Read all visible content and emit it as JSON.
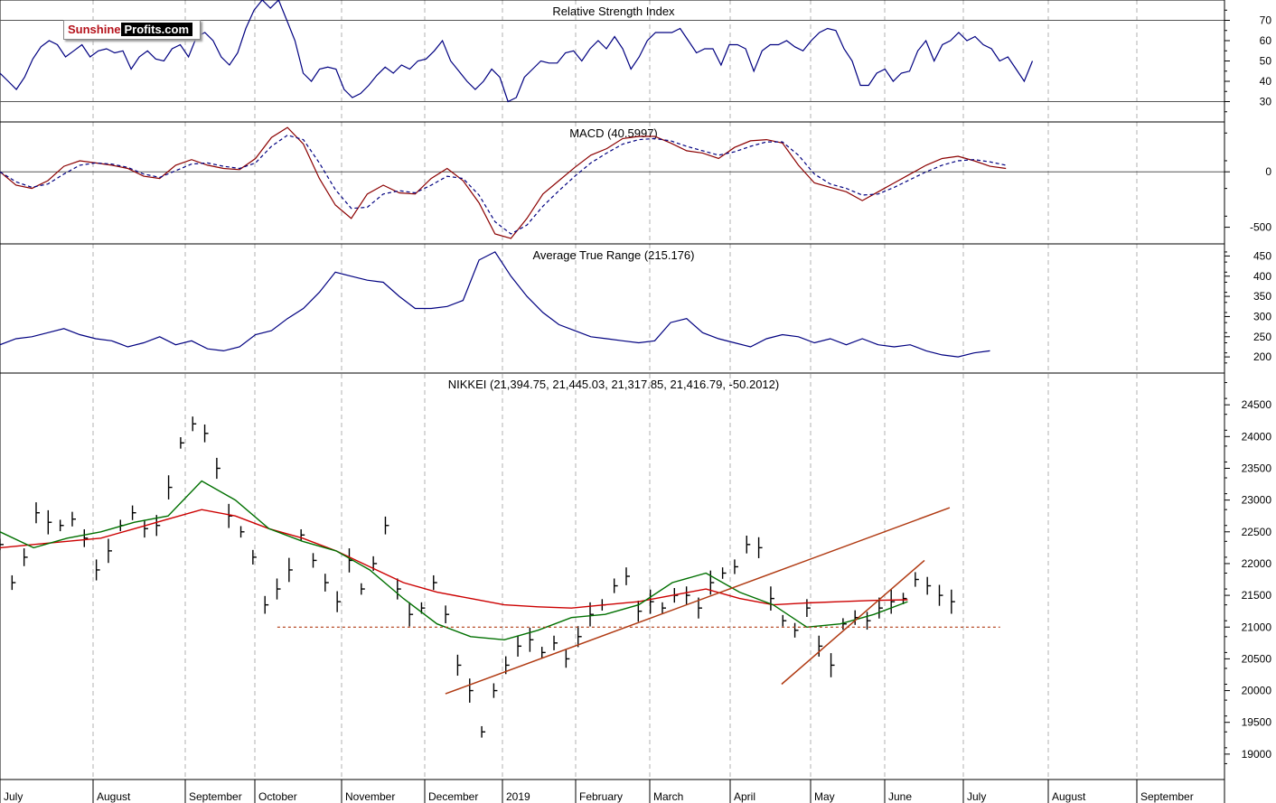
{
  "logo": {
    "part1": "Sunshine",
    "part2": "Profits.com"
  },
  "x_axis": {
    "labels": [
      "July",
      "August",
      "September",
      "October",
      "November",
      "December",
      "2019",
      "February",
      "March",
      "April",
      "May",
      "June",
      "July",
      "August",
      "September"
    ]
  },
  "colors": {
    "indicator_line": "#000080",
    "macd_signal": "#8b0000",
    "ma_long": "#cc0000",
    "ma_short": "#007000",
    "trendline": "#b03a12",
    "support": "#b03a12",
    "price_bars": "#000000",
    "grid": "#b0b0b0"
  },
  "chart_data": [
    {
      "type": "line",
      "title": "Relative Strength Index",
      "y_ticks": [
        "70",
        "60",
        "50",
        "40",
        "30"
      ],
      "ylim": [
        20,
        80
      ],
      "reference_lines": [
        70,
        30
      ],
      "series": [
        {
          "values": [
            44,
            40,
            36,
            42,
            51,
            57,
            60,
            58,
            52,
            55,
            58,
            52,
            55,
            56,
            54,
            55,
            46,
            52,
            55,
            51,
            50,
            56,
            58,
            52,
            62,
            64,
            60,
            52,
            48,
            54,
            66,
            75,
            80,
            76,
            80,
            70,
            60,
            44,
            40,
            46,
            47,
            46,
            36,
            32,
            34,
            38,
            43,
            47,
            44,
            48,
            46,
            50,
            51,
            55,
            60,
            50,
            45,
            40,
            36,
            40,
            46,
            42,
            30,
            32,
            42,
            46,
            50,
            49,
            49,
            54,
            55,
            50,
            56,
            60,
            56,
            62,
            56,
            46,
            52,
            60,
            64,
            64,
            64,
            66,
            60,
            54,
            56,
            56,
            48,
            58,
            58,
            56,
            45,
            55,
            58,
            58,
            60,
            57,
            55,
            60,
            64,
            66,
            65,
            56,
            50,
            38,
            38,
            44,
            46,
            40,
            44,
            45,
            55,
            60,
            50,
            58,
            60,
            64,
            60,
            62,
            58,
            56,
            50,
            52,
            46,
            40,
            50
          ],
          "x_start": 0.0,
          "x_step": 0.0975
        }
      ]
    },
    {
      "type": "line",
      "title": "MACD (40.5997)",
      "y_ticks": [
        "0",
        "-500"
      ],
      "ylim": [
        -650,
        450
      ],
      "reference_lines": [
        0
      ],
      "series": [
        {
          "values": [
            0,
            -120,
            -150,
            -80,
            50,
            100,
            80,
            60,
            30,
            -40,
            -60,
            60,
            110,
            60,
            30,
            20,
            120,
            310,
            400,
            250,
            -60,
            -300,
            -420,
            -200,
            -120,
            -190,
            -200,
            -60,
            30,
            -80,
            -280,
            -560,
            -600,
            -420,
            -200,
            -80,
            40,
            150,
            210,
            300,
            320,
            320,
            260,
            190,
            170,
            120,
            220,
            280,
            290,
            260,
            60,
            -100,
            -140,
            -180,
            -260,
            -180,
            -100,
            -20,
            60,
            120,
            140,
            100,
            50,
            30
          ],
          "x_start": 0.0,
          "x_step": 0.19
        },
        {
          "values": [
            0,
            -90,
            -140,
            -110,
            -20,
            60,
            80,
            70,
            40,
            -20,
            -50,
            10,
            70,
            80,
            50,
            30,
            80,
            230,
            330,
            290,
            80,
            -160,
            -330,
            -320,
            -200,
            -170,
            -190,
            -120,
            -40,
            -60,
            -210,
            -450,
            -560,
            -480,
            -310,
            -170,
            -40,
            80,
            170,
            250,
            290,
            300,
            280,
            230,
            190,
            150,
            180,
            230,
            270,
            270,
            150,
            -20,
            -110,
            -150,
            -210,
            -200,
            -140,
            -70,
            0,
            60,
            100,
            110,
            90,
            60
          ],
          "x_start": 0.0,
          "x_step": 0.19
        }
      ]
    },
    {
      "type": "line",
      "title": "Average True Range (215.176)",
      "y_ticks": [
        "450",
        "400",
        "350",
        "300",
        "250",
        "200"
      ],
      "ylim": [
        160,
        480
      ],
      "series": [
        {
          "values": [
            230,
            245,
            250,
            260,
            270,
            255,
            245,
            240,
            225,
            235,
            250,
            230,
            240,
            220,
            215,
            225,
            255,
            265,
            295,
            320,
            360,
            410,
            400,
            390,
            385,
            350,
            320,
            320,
            325,
            340,
            440,
            460,
            400,
            350,
            310,
            280,
            265,
            250,
            245,
            240,
            235,
            240,
            285,
            295,
            260,
            245,
            235,
            225,
            245,
            255,
            250,
            235,
            245,
            230,
            245,
            230,
            225,
            230,
            215,
            205,
            200,
            210,
            215
          ],
          "x_start": 0.0,
          "x_step": 0.19
        }
      ]
    },
    {
      "type": "line",
      "title": "NIKKEI (21,394.75, 21,445.03, 21,317.85, 21,416.79, -50.2012)",
      "y_ticks": [
        "24500",
        "24000",
        "23500",
        "23000",
        "22500",
        "22000",
        "21500",
        "21000",
        "20500",
        "20000",
        "19500",
        "19000"
      ],
      "ylim": [
        18600,
        25000
      ],
      "series": [
        {
          "name": "price",
          "values": [
            22300,
            21700,
            22100,
            22800,
            22650,
            22600,
            22700,
            22400,
            21900,
            22200,
            22600,
            22800,
            22550,
            22600,
            23200,
            23900,
            24200,
            24050,
            23500,
            22750,
            22500,
            22100,
            21350,
            21600,
            21900,
            22450,
            22050,
            21700,
            21400,
            22050,
            21600,
            22000,
            22600,
            21600,
            21200,
            21300,
            21700,
            21200,
            20400,
            20000,
            19350,
            20000,
            20400,
            20700,
            20800,
            20600,
            20750,
            20500,
            20850,
            21200,
            21350,
            21650,
            21800,
            21250,
            21400,
            21300,
            21500,
            21500,
            21300,
            21700,
            21850,
            21950,
            22300,
            22250,
            21450,
            21100,
            20950,
            21300,
            20700,
            20400,
            21050,
            21150,
            21100,
            21300,
            21400,
            21450,
            21750,
            21650,
            21500,
            21400
          ],
          "x_start": 0.0,
          "x_step": 0.1433
        },
        {
          "name": "ma_long",
          "values": [
            22250,
            22300,
            22350,
            22400,
            22550,
            22700,
            22850,
            22750,
            22550,
            22400,
            22200,
            21950,
            21700,
            21550,
            21450,
            21350,
            21320,
            21300,
            21350,
            21400,
            21500,
            21600,
            21450,
            21350,
            21380,
            21400,
            21420,
            21430
          ],
          "x_start": 0.0,
          "x_step": 0.4
        },
        {
          "name": "ma_short",
          "values": [
            22500,
            22250,
            22400,
            22500,
            22650,
            22750,
            23300,
            23000,
            22550,
            22350,
            22200,
            21900,
            21450,
            21050,
            20850,
            20800,
            20950,
            21150,
            21200,
            21350,
            21700,
            21850,
            21550,
            21350,
            21000,
            21050,
            21200,
            21400
          ],
          "x_start": 0.0,
          "x_step": 0.4
        },
        {
          "name": "trendline_1",
          "values": [
            19950,
            22880
          ],
          "x_start": 5.3,
          "x_step": 6.0
        },
        {
          "name": "trendline_2",
          "values": [
            20100,
            22050
          ],
          "x_start": 9.3,
          "x_step": 1.7
        },
        {
          "name": "support",
          "values": [
            21000,
            21000
          ],
          "x_start": 3.3,
          "x_step": 8.6
        }
      ]
    }
  ]
}
